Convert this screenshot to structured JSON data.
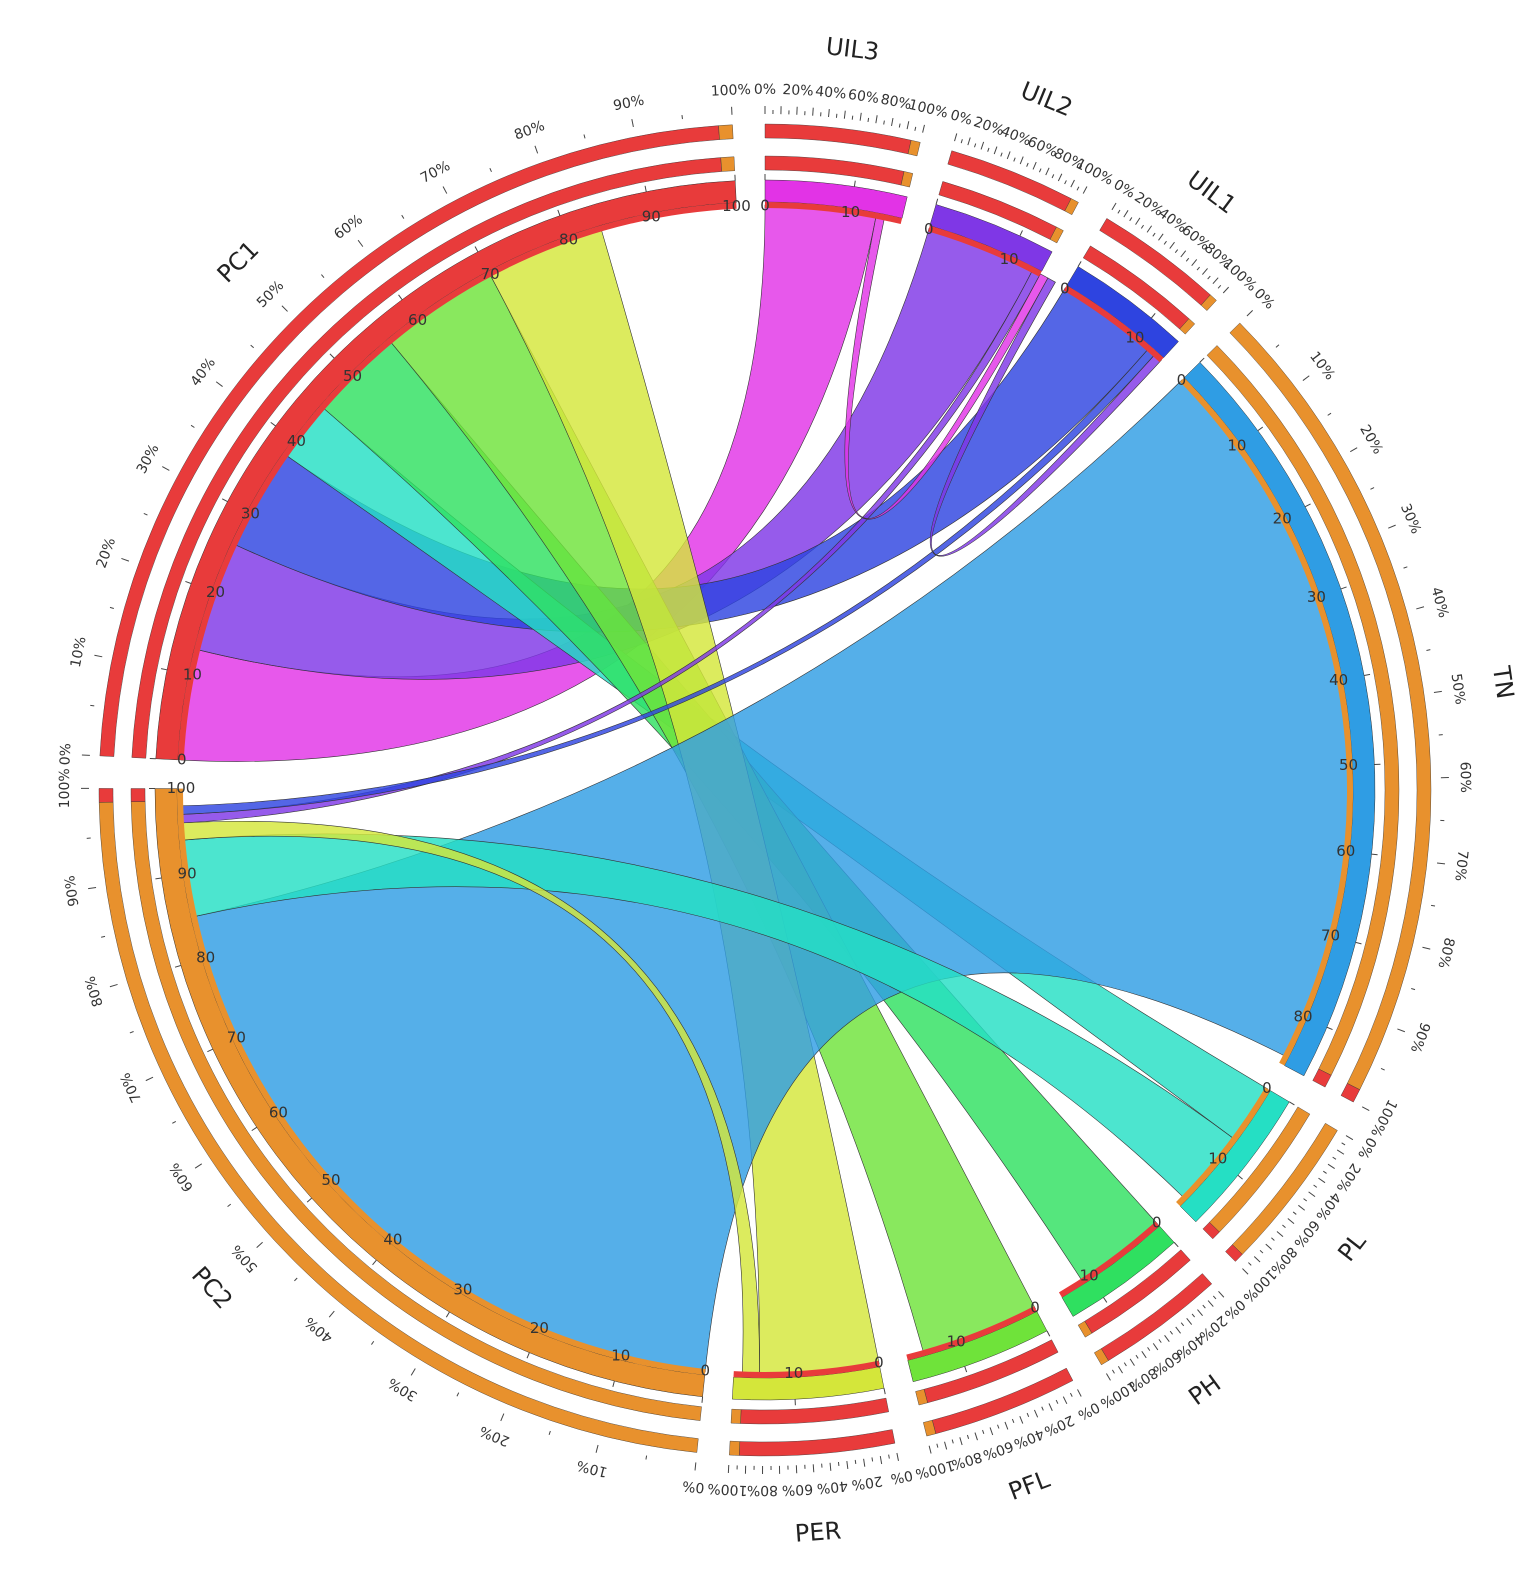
{
  "chart_data": {
    "type": "chord",
    "title": "",
    "sectors": [
      {
        "name": "UIL3",
        "total": 16,
        "color": "#e233e6",
        "inner_color": "#e83b3b"
      },
      {
        "name": "UIL2",
        "total": 14,
        "color": "#7f37e6",
        "inner_color": "#e83b3b"
      },
      {
        "name": "UIL1",
        "total": 14,
        "color": "#2e44e0",
        "inner_color": "#e83b3b"
      },
      {
        "name": "TN",
        "total": 86,
        "color": "#2f9de4",
        "inner_color": "#e8912d"
      },
      {
        "name": "PL",
        "total": 17,
        "color": "#25dfc4",
        "inner_color": "#e8912d"
      },
      {
        "name": "PH",
        "total": 14,
        "color": "#2fe060",
        "inner_color": "#e83b3b"
      },
      {
        "name": "PFL",
        "total": 16,
        "color": "#6fe33a",
        "inner_color": "#e83b3b"
      },
      {
        "name": "PER",
        "total": 17,
        "color": "#d4e63a",
        "inner_color": "#e83b3b"
      },
      {
        "name": "PC2",
        "total": 100,
        "color": "#e8912d",
        "inner_color": "#e8912d"
      },
      {
        "name": "PC1",
        "total": 100,
        "color": "#e83b3b",
        "inner_color": "#e83b3b"
      }
    ],
    "flows": [
      {
        "from": "PC1",
        "to": "UIL3",
        "value": 13
      },
      {
        "from": "PC1",
        "to": "UIL2",
        "value": 13
      },
      {
        "from": "PC1",
        "to": "UIL1",
        "value": 12
      },
      {
        "from": "PC1",
        "to": "PL",
        "value": 7
      },
      {
        "from": "PC1",
        "to": "PH",
        "value": 11
      },
      {
        "from": "PC1",
        "to": "PFL",
        "value": 14
      },
      {
        "from": "PC1",
        "to": "PER",
        "value": 14
      },
      {
        "from": "PC2",
        "to": "TN",
        "value": 85
      },
      {
        "from": "PC2",
        "to": "PL",
        "value": 9
      },
      {
        "from": "PC2",
        "to": "PER",
        "value": 2
      },
      {
        "from": "PC2",
        "to": "UIL2",
        "value": 1
      },
      {
        "from": "PC2",
        "to": "UIL1",
        "value": 1
      },
      {
        "from": "UIL3",
        "to": "UIL2",
        "value": 1
      },
      {
        "from": "UIL2",
        "to": "UIL1",
        "value": 1
      }
    ],
    "tick_labels": [
      "0",
      "10",
      "20",
      "30",
      "40",
      "50",
      "60",
      "70",
      "80",
      "90",
      "100"
    ],
    "percent_labels": [
      "0%",
      "10%",
      "20%",
      "30%",
      "40%",
      "50%",
      "60%",
      "70%",
      "80%",
      "90%",
      "100%"
    ],
    "outer_percent_labels": [
      "0%",
      "20%",
      "40%",
      "60%",
      "80%",
      "100%"
    ]
  }
}
